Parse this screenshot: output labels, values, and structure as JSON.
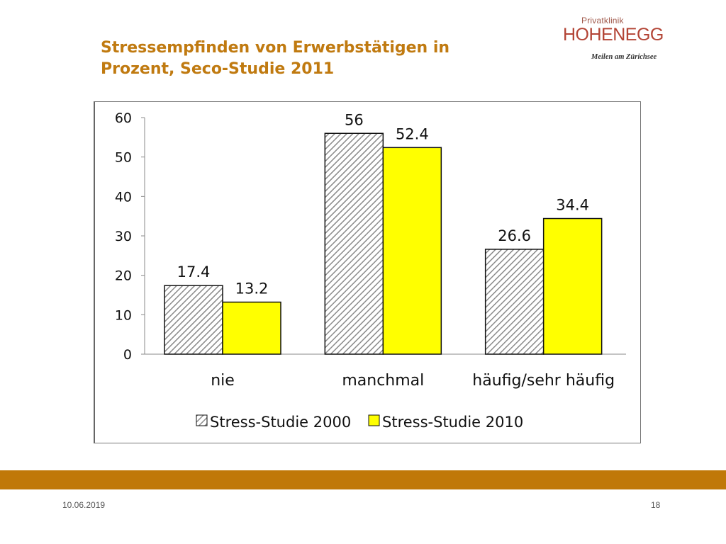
{
  "slide": {
    "title_line1": "Stressempfinden von Erwerbstätigen in",
    "title_line2": "Prozent, Seco-Studie 2011",
    "logo_top": "Privatklinik",
    "logo_main": "HOHENEGG",
    "logo_sub": "Meilen am Zürichsee",
    "date": "10.06.2019",
    "page": "18"
  },
  "colors": {
    "accent": "#c07808",
    "title": "#c07a10",
    "series_2010": "#ffff00",
    "hatch": "#888888"
  },
  "chart_data": {
    "type": "bar",
    "title": "",
    "xlabel": "",
    "ylabel": "",
    "ylim": [
      0,
      60
    ],
    "yticks": [
      0,
      10,
      20,
      30,
      40,
      50,
      60
    ],
    "grid": false,
    "legend_position": "bottom",
    "categories": [
      "nie",
      "manchmal",
      "häufig/sehr häufig"
    ],
    "series": [
      {
        "name": "Stress-Studie 2000",
        "values": [
          17.4,
          56,
          26.6
        ],
        "labels": [
          "17.4",
          "56",
          "26.6"
        ],
        "fill": "hatched"
      },
      {
        "name": "Stress-Studie 2010",
        "values": [
          13.2,
          52.4,
          34.4
        ],
        "labels": [
          "13.2",
          "52.4",
          "34.4"
        ],
        "fill": "#ffff00"
      }
    ]
  }
}
